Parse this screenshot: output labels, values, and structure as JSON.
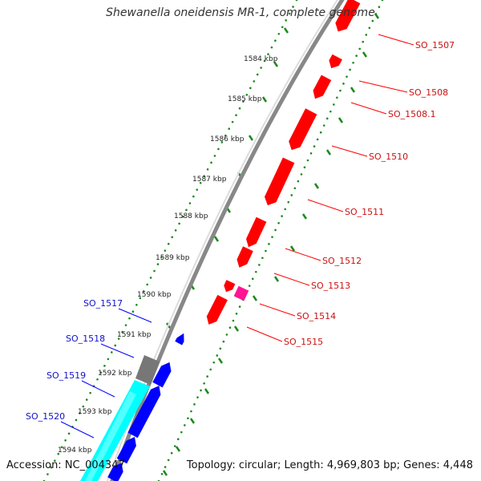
{
  "title": "Shewanella oneidensis MR-1, complete genome",
  "footer": {
    "accession": "Accession: NC_004347",
    "summary": "Topology: circular; Length: 4,969,803 bp; Genes: 4,448"
  },
  "ticks": [
    "1584 kbp",
    "1585 kbp",
    "1586 kbp",
    "1587 kbp",
    "1588 kbp",
    "1589 kbp",
    "1590 kbp",
    "1591 kbp",
    "1592 kbp",
    "1593 kbp",
    "1594 kbp"
  ],
  "forward_genes": [
    "SO_1507",
    "SO_1508",
    "SO_1508.1",
    "SO_1510",
    "SO_1511",
    "SO_1512",
    "SO_1513",
    "SO_1514",
    "SO_1515"
  ],
  "reverse_genes": [
    "SO_1517",
    "SO_1518",
    "SO_1519",
    "SO_1520"
  ],
  "colors": {
    "forward": "#ff0000",
    "forward_pseudo": "#ff1493",
    "reverse": "#0000ff",
    "reverse_rna": "#00ffff",
    "grey_feature": "#777777",
    "backbone": "#888888",
    "dots": "#1a8a1a"
  }
}
